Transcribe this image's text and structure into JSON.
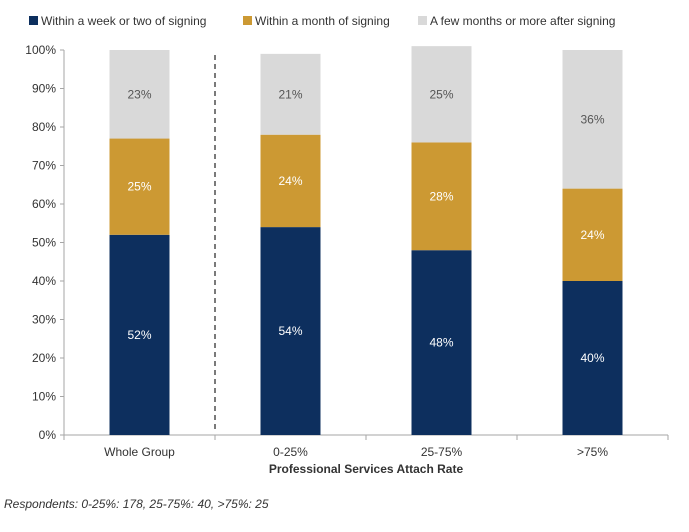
{
  "chart_data": {
    "type": "bar",
    "stacked": true,
    "categories": [
      "Whole Group",
      "0-25%",
      "25-75%",
      ">75%"
    ],
    "series": [
      {
        "name": "Within a week or two of signing",
        "values": [
          52,
          54,
          48,
          40
        ],
        "labels": [
          "52%",
          "54%",
          "48%",
          "40%"
        ],
        "color": "#0d2f5e",
        "label_color": "#ffffff"
      },
      {
        "name": "Within a month of signing",
        "values": [
          25,
          24,
          28,
          24
        ],
        "labels": [
          "25%",
          "24%",
          "28%",
          "24%"
        ],
        "color": "#cc9933",
        "label_color": "#ffffff"
      },
      {
        "name": "A few months or more after signing",
        "values": [
          23,
          21,
          25,
          36
        ],
        "labels": [
          "23%",
          "21%",
          "25%",
          "36%"
        ],
        "color": "#d9d9d9",
        "label_color": "#555555"
      }
    ],
    "ylim": [
      0,
      100
    ],
    "yticks": [
      0,
      10,
      20,
      30,
      40,
      50,
      60,
      70,
      80,
      90,
      100
    ],
    "ytick_labels": [
      "0%",
      "10%",
      "20%",
      "30%",
      "40%",
      "50%",
      "60%",
      "70%",
      "80%",
      "90%",
      "100%"
    ],
    "xlabel": "Professional Services Attach Rate",
    "ylabel": "",
    "title": "",
    "legend_position": "top",
    "grid": false,
    "divider_after_category": 0
  },
  "footnote": "Respondents: 0-25%: 178, 25-75%: 40, >75%: 25"
}
